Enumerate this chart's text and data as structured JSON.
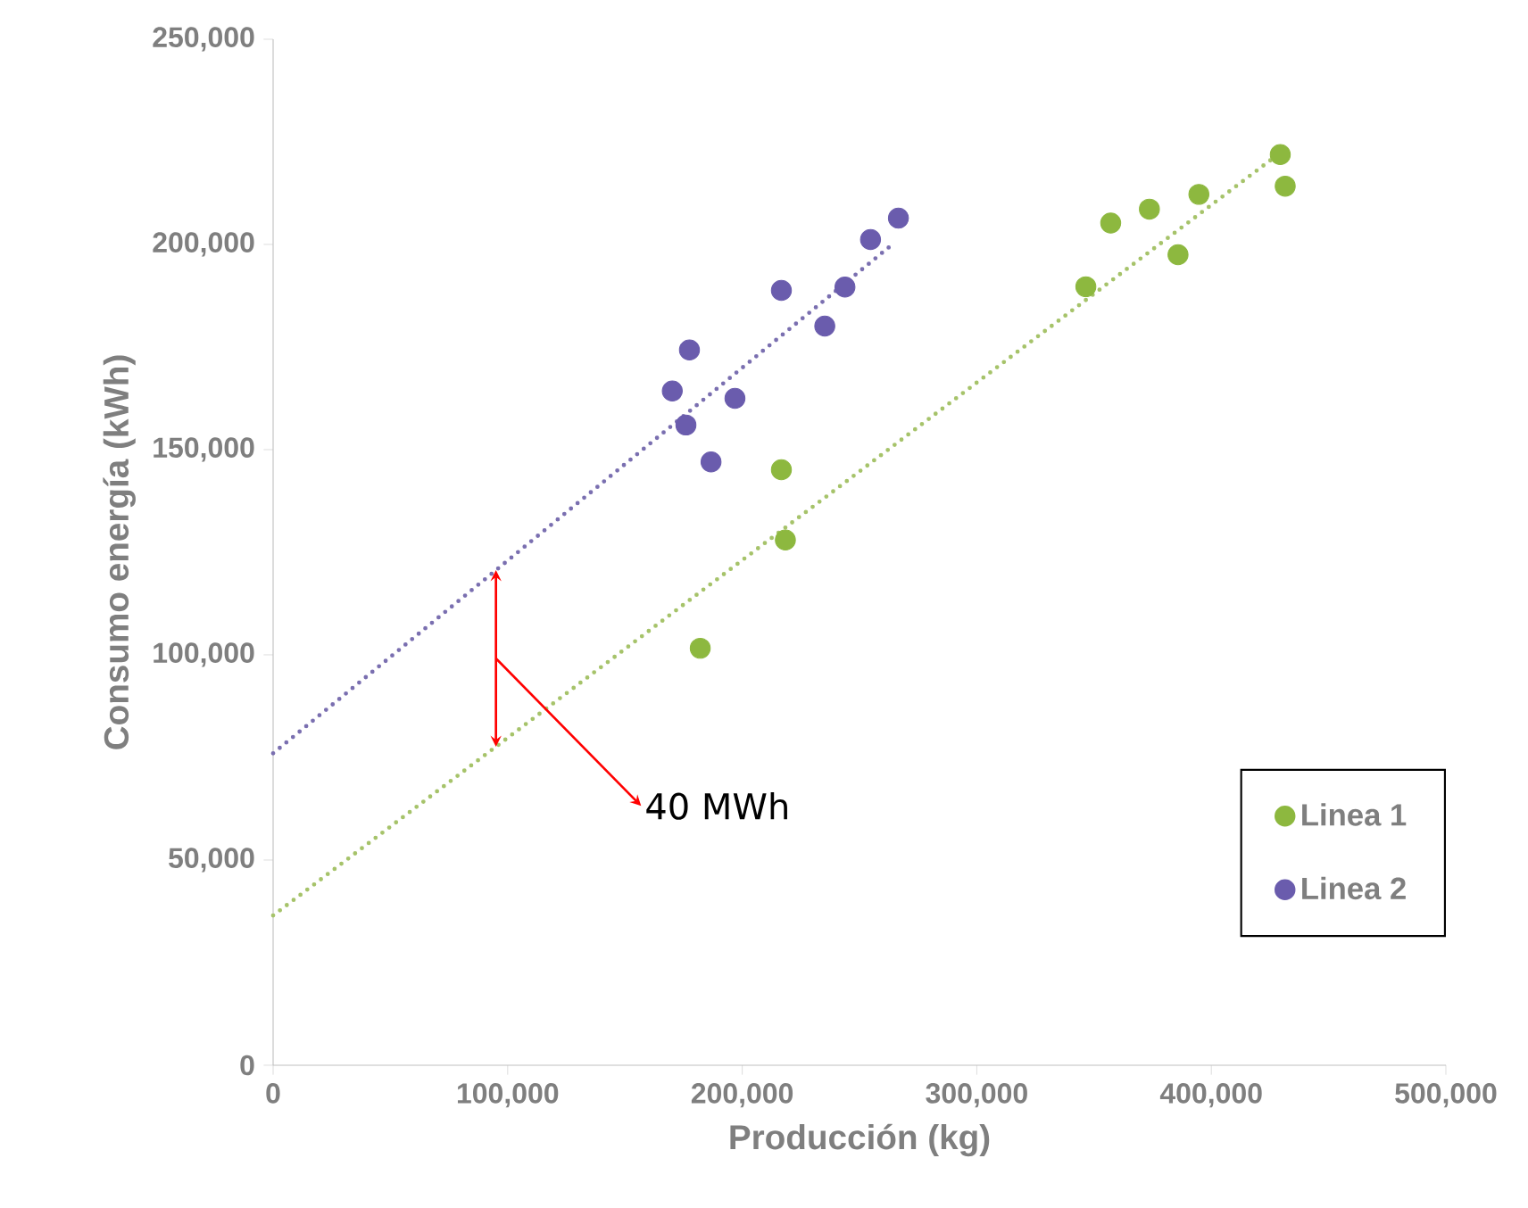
{
  "chart_data": {
    "type": "scatter",
    "xlabel": "Producción (kg)",
    "ylabel": "Consumo energía (kWh)",
    "xlim": [
      0,
      500000
    ],
    "ylim": [
      0,
      250000
    ],
    "xticks": [
      {
        "value": 0,
        "label": "0"
      },
      {
        "value": 100000,
        "label": "100,000"
      },
      {
        "value": 200000,
        "label": "200,000"
      },
      {
        "value": 300000,
        "label": "300,000"
      },
      {
        "value": 400000,
        "label": "400,000"
      },
      {
        "value": 500000,
        "label": "500,000"
      }
    ],
    "yticks": [
      {
        "value": 0,
        "label": "0"
      },
      {
        "value": 50000,
        "label": "50,000"
      },
      {
        "value": 100000,
        "label": "100,000"
      },
      {
        "value": 150000,
        "label": "150,000"
      },
      {
        "value": 200000,
        "label": "200,000"
      },
      {
        "value": 250000,
        "label": "250,000"
      }
    ],
    "legend": "bottom right",
    "grid": false,
    "series": [
      {
        "name": "Linea 1",
        "marker": "circle",
        "color": "#8db83f",
        "x": [
          182100,
          216700,
          218400,
          346500,
          357100,
          373600,
          385800,
          394700,
          429400,
          431500
        ],
        "values": [
          101600,
          145100,
          128000,
          189700,
          205200,
          208600,
          197500,
          212200,
          221900,
          214200
        ]
      },
      {
        "name": "Linea 2",
        "marker": "circle",
        "color": "#6a5cad",
        "x": [
          170200,
          177500,
          176000,
          186700,
          196900,
          216700,
          235200,
          243800,
          254700,
          266600
        ],
        "values": [
          164300,
          174300,
          156000,
          147000,
          162500,
          188800,
          180100,
          189600,
          201200,
          206400
        ]
      },
      {
        "type": "line",
        "marker": "none",
        "color": "#a6c36a",
        "line_style": "dotted",
        "x": [
          0,
          430000
        ],
        "values": [
          36500,
          222600
        ]
      },
      {
        "type": "line",
        "marker": "none",
        "color": "#7a6fb0",
        "line_style": "dotted",
        "x": [
          0,
          264000
        ],
        "values": [
          76000,
          200000
        ]
      }
    ],
    "annotations": [
      "40 MWh"
    ]
  }
}
